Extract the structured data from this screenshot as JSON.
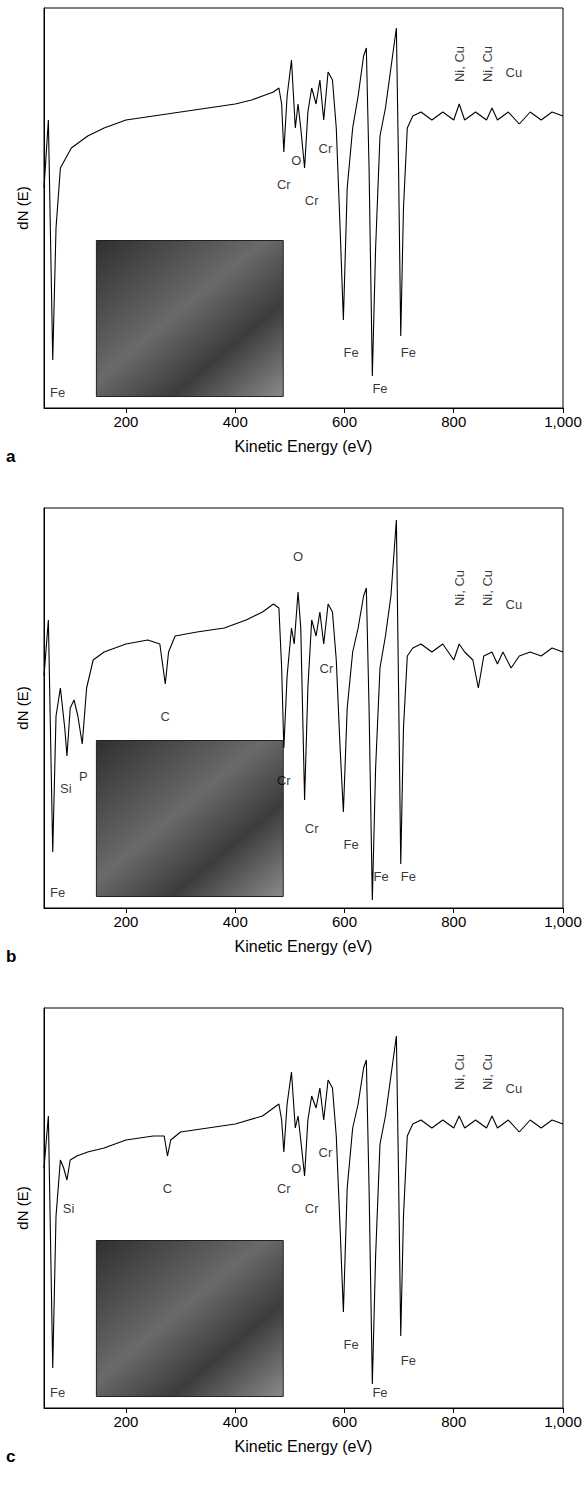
{
  "chart_data": [
    {
      "type": "line",
      "title": "a",
      "x_label": "Kinetic Energy (eV)",
      "y_label": "dN (E)",
      "xlim": [
        50,
        1000
      ],
      "xticks": [
        200,
        400,
        600,
        800,
        1000
      ],
      "ylim": [
        0,
        100
      ],
      "yticks": [],
      "tick_labels": "x",
      "grid": false,
      "x": [
        50,
        58,
        66,
        72,
        80,
        100,
        130,
        160,
        200,
        250,
        300,
        350,
        400,
        430,
        450,
        470,
        480,
        485,
        489,
        495,
        503,
        510,
        515,
        520,
        527,
        533,
        540,
        548,
        555,
        562,
        570,
        578,
        585,
        592,
        598,
        605,
        615,
        625,
        635,
        640,
        645,
        651,
        657,
        665,
        675,
        685,
        695,
        699,
        703,
        708,
        715,
        725,
        740,
        760,
        780,
        800,
        810,
        820,
        840,
        860,
        870,
        880,
        900,
        920,
        940,
        960,
        980,
        1000
      ],
      "series": [
        {
          "color": "#000000",
          "values": [
            55,
            72,
            12,
            45,
            60,
            65,
            68,
            70,
            72,
            73,
            74,
            75,
            76,
            77,
            78,
            79,
            80,
            76,
            64,
            78,
            87,
            70,
            76,
            70,
            60,
            74,
            80,
            76,
            82,
            72,
            84,
            82,
            70,
            45,
            22,
            55,
            70,
            78,
            88,
            90,
            60,
            8,
            40,
            68,
            75,
            85,
            95,
            60,
            18,
            50,
            70,
            73,
            74,
            72,
            74,
            72,
            76,
            72,
            74,
            72,
            75,
            72,
            74,
            71,
            74,
            72,
            74,
            73
          ]
        }
      ],
      "annotations": [
        {
          "text": "Fe",
          "x": 75,
          "y": 4
        },
        {
          "text": "Cr",
          "x": 489,
          "y": 56
        },
        {
          "text": "O",
          "x": 512,
          "y": 62
        },
        {
          "text": "Cr",
          "x": 540,
          "y": 52
        },
        {
          "text": "Cr",
          "x": 565,
          "y": 65
        },
        {
          "text": "Fe",
          "x": 612,
          "y": 14
        },
        {
          "text": "Fe",
          "x": 665,
          "y": 5
        },
        {
          "text": "Fe",
          "x": 717,
          "y": 14
        },
        {
          "text": "Ni, Cu",
          "x": 810,
          "y": 86
        },
        {
          "text": "Ni, Cu",
          "x": 862,
          "y": 86
        },
        {
          "text": "Cu",
          "x": 910,
          "y": 84
        }
      ]
    },
    {
      "type": "line",
      "title": "b",
      "x_label": "Kinetic Energy (eV)",
      "y_label": "dN (E)",
      "xlim": [
        50,
        1000
      ],
      "xticks": [
        200,
        400,
        600,
        800,
        1000
      ],
      "ylim": [
        0,
        100
      ],
      "yticks": [],
      "tick_labels": "x",
      "grid": false,
      "x": [
        50,
        58,
        66,
        72,
        80,
        88,
        92,
        98,
        105,
        112,
        120,
        128,
        140,
        160,
        200,
        240,
        262,
        268,
        272,
        278,
        290,
        330,
        380,
        420,
        450,
        470,
        480,
        485,
        489,
        495,
        503,
        508,
        515,
        520,
        527,
        533,
        540,
        548,
        555,
        562,
        570,
        578,
        585,
        592,
        598,
        605,
        615,
        625,
        635,
        640,
        645,
        651,
        657,
        665,
        675,
        685,
        695,
        699,
        703,
        708,
        715,
        725,
        740,
        760,
        780,
        800,
        810,
        820,
        835,
        845,
        855,
        870,
        880,
        890,
        905,
        920,
        940,
        960,
        980,
        1000
      ],
      "series": [
        {
          "color": "#000000",
          "values": [
            58,
            72,
            14,
            48,
            55,
            45,
            38,
            50,
            52,
            48,
            41,
            55,
            62,
            64,
            66,
            67,
            66,
            60,
            56,
            64,
            68,
            69,
            70,
            72,
            74,
            76,
            75,
            60,
            40,
            58,
            70,
            66,
            79,
            70,
            27,
            55,
            72,
            68,
            74,
            66,
            76,
            74,
            62,
            40,
            24,
            50,
            64,
            70,
            78,
            80,
            50,
            2,
            35,
            60,
            68,
            78,
            97,
            55,
            11,
            45,
            63,
            65,
            66,
            64,
            66,
            62,
            66,
            64,
            62,
            55,
            63,
            64,
            61,
            64,
            60,
            63,
            64,
            63,
            65,
            64
          ]
        }
      ],
      "annotations": [
        {
          "text": "Fe",
          "x": 75,
          "y": 4
        },
        {
          "text": "Si",
          "x": 90,
          "y": 30
        },
        {
          "text": "P",
          "x": 122,
          "y": 33
        },
        {
          "text": "C",
          "x": 272,
          "y": 48
        },
        {
          "text": "Cr",
          "x": 489,
          "y": 32
        },
        {
          "text": "O",
          "x": 515,
          "y": 88
        },
        {
          "text": "Cr",
          "x": 540,
          "y": 20
        },
        {
          "text": "Cr",
          "x": 567,
          "y": 60
        },
        {
          "text": "Fe",
          "x": 612,
          "y": 16
        },
        {
          "text": "Fe",
          "x": 667,
          "y": 8
        },
        {
          "text": "Fe",
          "x": 717,
          "y": 8
        },
        {
          "text": "Ni, Cu",
          "x": 810,
          "y": 80
        },
        {
          "text": "Ni, Cu",
          "x": 862,
          "y": 80
        },
        {
          "text": "Cu",
          "x": 910,
          "y": 76
        }
      ]
    },
    {
      "type": "line",
      "title": "c",
      "x_label": "Kinetic Energy (eV)",
      "y_label": "dN (E)",
      "xlim": [
        50,
        1000
      ],
      "xticks": [
        200,
        400,
        600,
        800,
        1000
      ],
      "ylim": [
        0,
        100
      ],
      "yticks": [],
      "tick_labels": "x",
      "grid": false,
      "x": [
        50,
        58,
        66,
        72,
        80,
        86,
        92,
        98,
        110,
        130,
        160,
        200,
        250,
        270,
        276,
        282,
        300,
        350,
        400,
        450,
        470,
        480,
        485,
        489,
        495,
        503,
        510,
        515,
        520,
        527,
        533,
        540,
        548,
        555,
        562,
        570,
        578,
        585,
        592,
        598,
        605,
        615,
        625,
        635,
        640,
        645,
        651,
        657,
        665,
        675,
        685,
        695,
        699,
        703,
        708,
        715,
        725,
        740,
        760,
        780,
        800,
        810,
        820,
        840,
        860,
        870,
        880,
        900,
        920,
        940,
        960,
        980,
        1000
      ],
      "series": [
        {
          "color": "#000000",
          "values": [
            60,
            73,
            10,
            48,
            62,
            60,
            57,
            62,
            63,
            64,
            65,
            67,
            68,
            68,
            63,
            67,
            69,
            70,
            71,
            73,
            75,
            76,
            72,
            64,
            76,
            84,
            70,
            73,
            67,
            58,
            72,
            78,
            75,
            80,
            72,
            82,
            80,
            68,
            45,
            24,
            55,
            70,
            76,
            85,
            87,
            55,
            6,
            38,
            66,
            73,
            83,
            93,
            58,
            18,
            48,
            68,
            71,
            72,
            70,
            72,
            70,
            73,
            70,
            72,
            70,
            73,
            70,
            72,
            69,
            72,
            70,
            72,
            71
          ]
        }
      ],
      "annotations": [
        {
          "text": "Fe",
          "x": 75,
          "y": 4
        },
        {
          "text": "Si",
          "x": 95,
          "y": 50
        },
        {
          "text": "C",
          "x": 276,
          "y": 55
        },
        {
          "text": "Cr",
          "x": 489,
          "y": 55
        },
        {
          "text": "O",
          "x": 512,
          "y": 60
        },
        {
          "text": "Cr",
          "x": 540,
          "y": 50
        },
        {
          "text": "Cr",
          "x": 565,
          "y": 64
        },
        {
          "text": "Fe",
          "x": 612,
          "y": 16
        },
        {
          "text": "Fe",
          "x": 665,
          "y": 4
        },
        {
          "text": "Fe",
          "x": 717,
          "y": 12
        },
        {
          "text": "Ni, Cu",
          "x": 810,
          "y": 84
        },
        {
          "text": "Ni, Cu",
          "x": 862,
          "y": 84
        },
        {
          "text": "Cu",
          "x": 910,
          "y": 80
        }
      ]
    }
  ]
}
